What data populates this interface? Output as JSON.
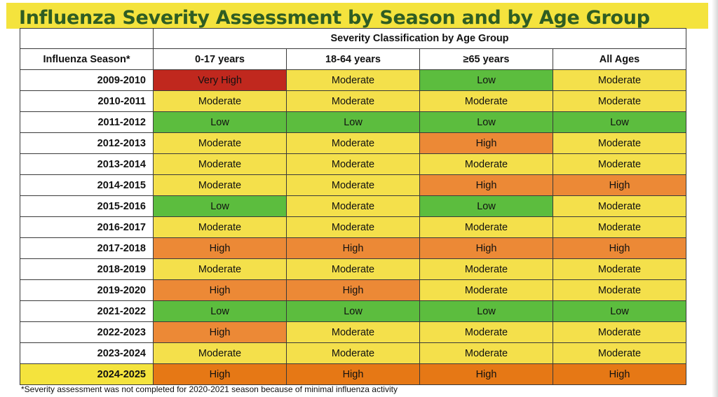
{
  "title": "Influenza Severity Assessment by Season and  by Age Group",
  "colors": {
    "title_bar": "#f4e33d",
    "title_text": "#2f5d23",
    "very_high": "#c0281e",
    "high": "#ec8936",
    "moderate": "#f4e04b",
    "low": "#5cbd3e"
  },
  "table": {
    "group_header": "Severity Classification by Age Group",
    "season_header": "Influenza Season*",
    "columns": [
      "0-17 years",
      "18-64 years",
      "≥65 years",
      "All Ages"
    ],
    "rows": [
      {
        "season": "2009-2010",
        "values": [
          "Very High",
          "Moderate",
          "Low",
          "Moderate"
        ]
      },
      {
        "season": "2010-2011",
        "values": [
          "Moderate",
          "Moderate",
          "Moderate",
          "Moderate"
        ]
      },
      {
        "season": "2011-2012",
        "values": [
          "Low",
          "Low",
          "Low",
          "Low"
        ]
      },
      {
        "season": "2012-2013",
        "values": [
          "Moderate",
          "Moderate",
          "High",
          "Moderate"
        ]
      },
      {
        "season": "2013-2014",
        "values": [
          "Moderate",
          "Moderate",
          "Moderate",
          "Moderate"
        ]
      },
      {
        "season": "2014-2015",
        "values": [
          "Moderate",
          "Moderate",
          "High",
          "High"
        ]
      },
      {
        "season": "2015-2016",
        "values": [
          "Low",
          "Moderate",
          "Low",
          "Moderate"
        ]
      },
      {
        "season": "2016-2017",
        "values": [
          "Moderate",
          "Moderate",
          "Moderate",
          "Moderate"
        ]
      },
      {
        "season": "2017-2018",
        "values": [
          "High",
          "High",
          "High",
          "High"
        ]
      },
      {
        "season": "2018-2019",
        "values": [
          "Moderate",
          "Moderate",
          "Moderate",
          "Moderate"
        ]
      },
      {
        "season": "2019-2020",
        "values": [
          "High",
          "High",
          "Moderate",
          "Moderate"
        ]
      },
      {
        "season": "2021-2022",
        "values": [
          "Low",
          "Low",
          "Low",
          "Low"
        ]
      },
      {
        "season": "2022-2023",
        "values": [
          "High",
          "Moderate",
          "Moderate",
          "Moderate"
        ]
      },
      {
        "season": "2023-2024",
        "values": [
          "Moderate",
          "Moderate",
          "Moderate",
          "Moderate"
        ]
      },
      {
        "season": "2024-2025",
        "values": [
          "High",
          "High",
          "High",
          "High"
        ]
      }
    ]
  },
  "footnote": "*Severity assessment was not completed for 2020-2021 season because of minimal influenza activity"
}
